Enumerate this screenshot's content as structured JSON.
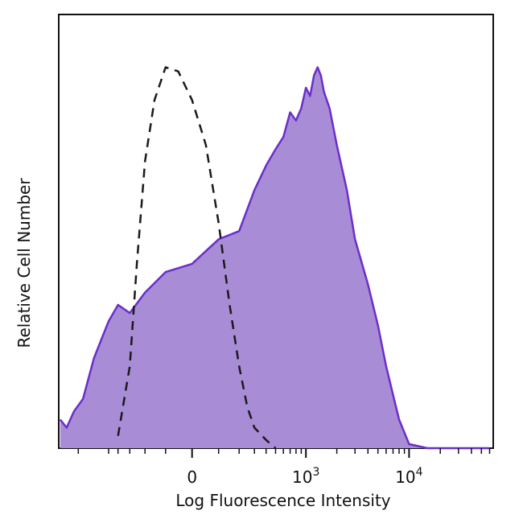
{
  "chart_data": {
    "type": "area",
    "xlabel": "Log Fluorescence Intensity",
    "ylabel": "Relative Cell Number",
    "x_scale": "biexponential",
    "x_tick_labels": [
      {
        "base": "0",
        "exp": ""
      },
      {
        "base": "10",
        "exp": "3"
      },
      {
        "base": "10",
        "exp": "4"
      }
    ],
    "x_tick_values": [
      0,
      1000,
      10000
    ],
    "ylim": [
      0,
      100
    ],
    "grid": false,
    "legend": "none",
    "series": [
      {
        "style": "filled",
        "fill_color": "#a98cd6",
        "line_color": "#6a2fc9",
        "x": [
          -1500,
          -1300,
          -1100,
          -900,
          -700,
          -500,
          -400,
          -300,
          -200,
          -100,
          0,
          100,
          200,
          300,
          400,
          500,
          600,
          700,
          800,
          900,
          1000,
          1100,
          1200,
          1300,
          1400,
          1500,
          1700,
          2000,
          2500,
          3000,
          4000,
          5000,
          6000,
          7000,
          8000,
          10000,
          15000,
          30000,
          60000
        ],
        "y": [
          7,
          5,
          9,
          12,
          22,
          31,
          35,
          33,
          38,
          43,
          45,
          51,
          53,
          63,
          69,
          73,
          76,
          82,
          80,
          83,
          88,
          86,
          91,
          93,
          91,
          87,
          83,
          74,
          63,
          51,
          40,
          30,
          20,
          13,
          7,
          1,
          0,
          0,
          0
        ]
      },
      {
        "style": "dashed",
        "line_color": "#1a1a1a",
        "x": [
          -400,
          -300,
          -250,
          -200,
          -150,
          -100,
          -50,
          0,
          50,
          100,
          150,
          200,
          250,
          300,
          400,
          500
        ],
        "y": [
          3,
          20,
          45,
          70,
          85,
          93,
          92,
          85,
          74,
          55,
          35,
          20,
          10,
          5,
          2,
          0
        ]
      }
    ]
  }
}
